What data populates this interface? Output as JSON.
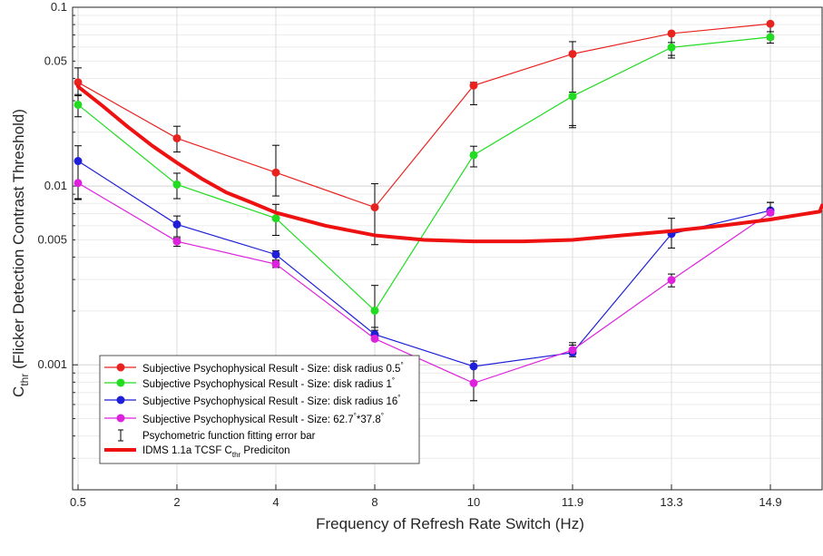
{
  "chart_data": {
    "type": "line",
    "xlabel": "Frequency of Refresh Rate Switch (Hz)",
    "ylabel_main": "C",
    "ylabel_sub": "thr",
    "ylabel_rest": " (Flicker Detection Contrast Threshold)",
    "y_scale": "log",
    "ylim": [
      0.0002,
      0.1
    ],
    "grid": true,
    "legend_position": "bottom-left",
    "x_ticks": [
      "0.5",
      "2",
      "4",
      "8",
      "10",
      "11.9",
      "13.3",
      "14.9"
    ],
    "y_ticks": [
      {
        "value": 0.1,
        "label": "0.1"
      },
      {
        "value": 0.05,
        "label": "0.05"
      },
      {
        "value": 0.01,
        "label": "0.01"
      },
      {
        "value": 0.005,
        "label": "0.005"
      },
      {
        "value": 0.001,
        "label": "0.001"
      }
    ],
    "series": [
      {
        "name": "Subjective Psychophysical Result - Size: disk radius 0.5",
        "name_sup": "°",
        "color": "#e8231f",
        "values": [
          0.038,
          0.0185,
          0.0119,
          0.0076,
          0.0365,
          0.0548,
          0.0713,
          0.0808
        ],
        "err_low": [
          0.032,
          0.0155,
          0.0088,
          0.0047,
          0.0285,
          0.0218,
          0.0538,
          0.0663
        ],
        "err_high": [
          0.0458,
          0.0216,
          0.0169,
          0.0103,
          0.038,
          0.0642,
          0.0713,
          0.0808
        ]
      },
      {
        "name": "Subjective Psychophysical Result - Size: disk radius 1",
        "name_sup": "°",
        "color": "#22dc22",
        "values": [
          0.0285,
          0.0102,
          0.0066,
          0.00201,
          0.0149,
          0.0318,
          0.0596,
          0.0681
        ],
        "err_low": [
          0.0244,
          0.0085,
          0.0053,
          0.00156,
          0.0128,
          0.0212,
          0.052,
          0.063
        ],
        "err_high": [
          0.0325,
          0.0118,
          0.0079,
          0.00278,
          0.0167,
          0.0335,
          0.0635,
          0.073
        ]
      },
      {
        "name": "Subjective Psychophysical Result - Size: disk radius 16",
        "name_sup": "°",
        "color": "#1f1fd8",
        "values": [
          0.0138,
          0.0061,
          0.00414,
          0.00148,
          0.00098,
          0.00117,
          0.0054,
          0.0073
        ],
        "err_low": [
          0.0084,
          0.0052,
          0.0038,
          0.00139,
          0.00063,
          0.00111,
          0.0045,
          0.0071
        ],
        "err_high": [
          0.0168,
          0.0068,
          0.00434,
          0.00162,
          0.00105,
          0.00129,
          0.0066,
          0.0081
        ]
      },
      {
        "name": "Subjective Psychophysical Result - Size: 62.7",
        "name_sup": "°",
        "name_tail": "*37.8",
        "name_tail_sup": "°",
        "color": "#dd22dd",
        "values": [
          0.0104,
          0.0049,
          0.00366,
          0.0014,
          0.00079,
          0.00121,
          0.00298,
          0.0071
        ],
        "err_low": [
          0.0085,
          0.0046,
          0.0035,
          0.0014,
          0.00063,
          0.00117,
          0.00273,
          0.0069
        ],
        "err_high": [
          0.0104,
          0.0051,
          0.00385,
          0.0014,
          0.00079,
          0.00133,
          0.00322,
          0.0081
        ]
      }
    ],
    "errorbar_legend": "Psychometric function fitting error bar",
    "model_curve": {
      "name_prefix": "IDMS 1.1a TCSF C",
      "name_sub": "thr",
      "name_suffix": " Prediciton",
      "color": "#ee1111",
      "points": [
        {
          "x": 0.0,
          "y": 0.036
        },
        {
          "x": 0.5,
          "y": 0.028
        },
        {
          "x": 1.0,
          "y": 0.0215
        },
        {
          "x": 1.5,
          "y": 0.0168
        },
        {
          "x": 2.0,
          "y": 0.0135
        },
        {
          "x": 2.5,
          "y": 0.011
        },
        {
          "x": 3.0,
          "y": 0.0092
        },
        {
          "x": 3.5,
          "y": 0.0081
        },
        {
          "x": 4.0,
          "y": 0.0071
        },
        {
          "x": 5.0,
          "y": 0.006
        },
        {
          "x": 6.0,
          "y": 0.0053
        },
        {
          "x": 7.0,
          "y": 0.005
        },
        {
          "x": 8.0,
          "y": 0.0049
        },
        {
          "x": 9.0,
          "y": 0.0049
        },
        {
          "x": 10.0,
          "y": 0.005
        },
        {
          "x": 11.0,
          "y": 0.0053
        },
        {
          "x": 12.0,
          "y": 0.0056
        },
        {
          "x": 13.0,
          "y": 0.006
        },
        {
          "x": 14.0,
          "y": 0.0065
        },
        {
          "x": 15.0,
          "y": 0.0072
        },
        {
          "x": 16.0,
          "y": 0.0078
        }
      ]
    }
  }
}
